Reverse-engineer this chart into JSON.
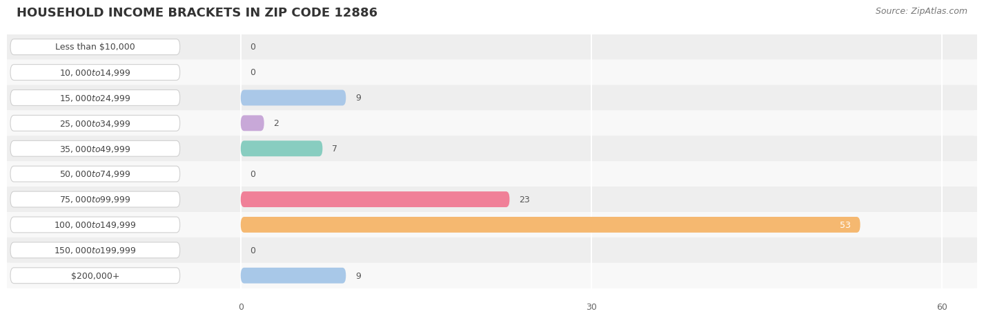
{
  "title": "HOUSEHOLD INCOME BRACKETS IN ZIP CODE 12886",
  "source": "Source: ZipAtlas.com",
  "categories": [
    "Less than $10,000",
    "$10,000 to $14,999",
    "$15,000 to $24,999",
    "$25,000 to $34,999",
    "$35,000 to $49,999",
    "$50,000 to $74,999",
    "$75,000 to $99,999",
    "$100,000 to $149,999",
    "$150,000 to $199,999",
    "$200,000+"
  ],
  "values": [
    0,
    0,
    9,
    2,
    7,
    0,
    23,
    53,
    0,
    9
  ],
  "bar_colors": [
    "#f5c89a",
    "#f5a0a0",
    "#aac8e8",
    "#c8a8d8",
    "#88cdc0",
    "#b8b0e0",
    "#f08098",
    "#f5b870",
    "#f5a0a8",
    "#a8c8e8"
  ],
  "xlim": [
    0,
    60
  ],
  "xticks": [
    0,
    30,
    60
  ],
  "title_fontsize": 13,
  "label_fontsize": 9,
  "value_fontsize": 9,
  "source_fontsize": 9,
  "bar_height": 0.62,
  "background_color": "#ffffff",
  "row_bg_color1": "#eeeeee",
  "row_bg_color2": "#f8f8f8"
}
